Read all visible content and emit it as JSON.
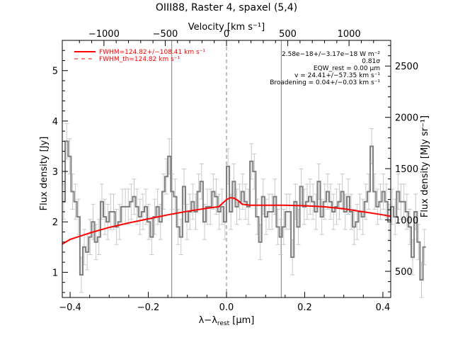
{
  "chart_data": {
    "type": "line",
    "title": "OIII88, Raster 4, spaxel (5,4)",
    "xlabel_prefix": "λ−λ",
    "xlabel_sub": "rest",
    "xlabel_suffix": " [μm]",
    "ylabel": "Flux density [Jy]",
    "top_label": "Velocity [km s⁻¹]",
    "right_label": "Flux density [MJy sr⁻¹]",
    "xlim": [
      -0.42,
      0.42
    ],
    "ylim": [
      0.5,
      5.6
    ],
    "velocity_lim": [
      -1340,
      1340
    ],
    "right_lim": [
      245,
      2750
    ],
    "x_ticks": [
      -0.4,
      -0.2,
      0.0,
      0.2,
      0.4
    ],
    "x_tick_labels": [
      "−0.4",
      "−0.2",
      "0.0",
      "0.2",
      "0.4"
    ],
    "y_ticks": [
      1,
      2,
      3,
      4,
      5
    ],
    "y_tick_labels": [
      "1",
      "2",
      "3",
      "4",
      "5"
    ],
    "velocity_ticks": [
      -1000,
      -500,
      0,
      500,
      1000
    ],
    "velocity_tick_labels": [
      "−1000",
      "−500",
      "0",
      "500",
      "1000"
    ],
    "right_ticks": [
      500,
      1000,
      1500,
      2000,
      2500
    ],
    "right_tick_labels": [
      "500",
      "1000",
      "1500",
      "2000",
      "2500"
    ],
    "vertical_lines": [
      {
        "x": -0.14,
        "style": "solid"
      },
      {
        "x": 0.0,
        "style": "dashed"
      },
      {
        "x": 0.14,
        "style": "solid"
      }
    ],
    "legend": {
      "placement": "top-left",
      "entries": [
        {
          "label": "FWHM=124.82+/−108.41 km s⁻¹",
          "style": "solid"
        },
        {
          "label": "FWHM_th=124.82 km s⁻¹",
          "style": "dashed"
        }
      ]
    },
    "annotations": [
      "2.58e−18+/−3.17e−18 W m⁻²",
      "0.81σ",
      "EQW_rest = 0.00 μm",
      "v = 24.41+/−57.35 km s⁻¹",
      "Broadening = 0.04+/−0.03 km s⁻¹"
    ],
    "spectrum": {
      "name": "data",
      "x_start": -0.42,
      "x_step": 0.0075,
      "values": [
        2.4,
        3.6,
        3.3,
        2.6,
        2.4,
        2.1,
        0.95,
        1.5,
        1.4,
        1.7,
        2.0,
        1.6,
        1.7,
        2.4,
        2.1,
        2.0,
        2.2,
        2.2,
        1.9,
        2.0,
        2.3,
        2.3,
        2.3,
        2.4,
        2.5,
        2.3,
        2.1,
        2.2,
        2.3,
        2.0,
        1.7,
        2.1,
        2.3,
        2.0,
        2.6,
        2.9,
        3.3,
        2.6,
        2.5,
        1.9,
        1.7,
        2.7,
        2.0,
        2.2,
        2.4,
        2.2,
        2.6,
        2.8,
        2.0,
        2.3,
        2.3,
        2.6,
        2.5,
        2.2,
        2.3,
        2.0,
        3.1,
        2.2,
        2.8,
        2.3,
        2.4,
        2.6,
        2.4,
        2.3,
        3.2,
        3.0,
        2.1,
        1.6,
        2.5,
        2.1,
        2.2,
        2.2,
        2.5,
        1.9,
        1.7,
        1.9,
        2.2,
        2.2,
        1.3,
        2.4,
        1.9,
        2.7,
        2.3,
        2.4,
        2.5,
        2.4,
        2.2,
        2.8,
        2.1,
        2.4,
        2.6,
        2.4,
        2.2,
        2.3,
        2.4,
        2.6,
        2.2,
        2.5,
        2.2,
        1.9,
        2.0,
        2.2,
        2.1,
        2.4,
        2.6,
        3.5,
        2.6,
        2.3,
        2.4,
        2.6,
        2.4,
        2.0,
        2.3,
        2.1,
        2.6,
        2.4,
        2.4,
        2.2,
        1.9,
        1.3,
        2.2,
        1.6,
        0.85,
        1.5
      ],
      "errors": [
        0.35,
        0.35,
        0.35,
        0.35,
        0.35,
        0.35,
        0.35,
        0.35,
        0.35,
        0.35,
        0.35,
        0.35,
        0.35,
        0.35,
        0.35,
        0.35,
        0.35,
        0.35,
        0.35,
        0.35,
        0.35,
        0.35,
        0.35,
        0.35,
        0.35,
        0.35,
        0.35,
        0.35,
        0.35,
        0.35,
        0.35,
        0.35,
        0.35,
        0.35,
        0.35,
        0.35,
        0.35,
        0.35,
        0.35,
        0.35,
        0.35,
        0.35,
        0.35,
        0.35,
        0.35,
        0.35,
        0.35,
        0.35,
        0.35,
        0.35,
        0.35,
        0.35,
        0.35,
        0.35,
        0.35,
        0.35,
        0.35,
        0.35,
        0.35,
        0.35,
        0.35,
        0.35,
        0.35,
        0.35,
        0.35,
        0.35,
        0.35,
        0.35,
        0.35,
        0.35,
        0.35,
        0.35,
        0.35,
        0.35,
        0.35,
        0.35,
        0.35,
        0.35,
        0.35,
        0.35,
        0.35,
        0.35,
        0.35,
        0.35,
        0.35,
        0.35,
        0.35,
        0.35,
        0.35,
        0.35,
        0.35,
        0.35,
        0.35,
        0.35,
        0.35,
        0.35,
        0.35,
        0.35,
        0.35,
        0.35,
        0.35,
        0.35,
        0.35,
        0.35,
        0.35,
        0.35,
        0.35,
        0.35,
        0.35,
        0.35,
        0.35,
        0.35,
        0.35,
        0.35,
        0.35,
        0.35,
        0.35,
        0.35,
        0.35,
        0.35,
        0.35,
        0.35,
        0.35,
        0.35
      ]
    },
    "fit": {
      "name": "fit",
      "x": [
        -0.42,
        -0.4,
        -0.35,
        -0.3,
        -0.25,
        -0.2,
        -0.15,
        -0.1,
        -0.05,
        -0.02,
        0.0,
        0.01,
        0.02,
        0.03,
        0.04,
        0.06,
        0.1,
        0.15,
        0.2,
        0.25,
        0.3,
        0.35,
        0.4,
        0.42
      ],
      "y": [
        1.56,
        1.65,
        1.78,
        1.89,
        1.98,
        2.06,
        2.14,
        2.21,
        2.27,
        2.3,
        2.44,
        2.48,
        2.47,
        2.42,
        2.35,
        2.33,
        2.33,
        2.33,
        2.32,
        2.3,
        2.26,
        2.2,
        2.14,
        2.11
      ]
    },
    "colors": {
      "data": "#7f7f7f",
      "fit": "#ff0000",
      "vlines": "#7f7f7f",
      "axes": "#000000"
    }
  }
}
